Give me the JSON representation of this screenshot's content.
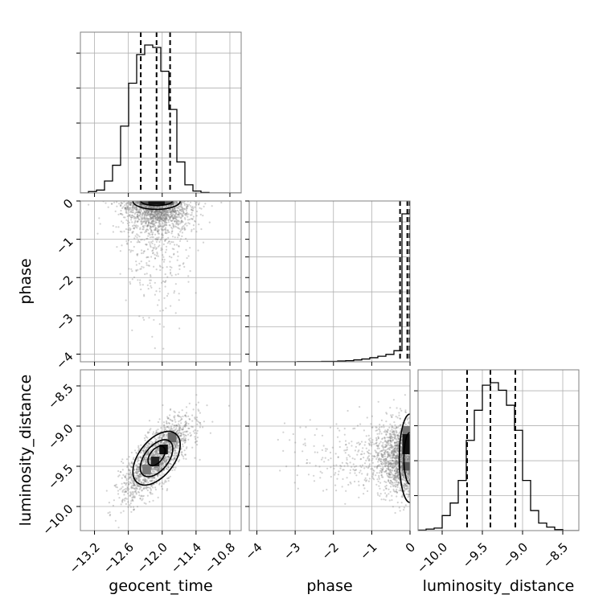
{
  "colors": {
    "background": "#ffffff",
    "frame": "#808080",
    "grid": "#b0b0b0",
    "line": "#000000",
    "points": "#7f7f7f"
  },
  "chart_data": {
    "type": "corner",
    "title": "",
    "parameters": [
      "geocent_time",
      "phase",
      "luminosity_distance"
    ],
    "ranges": {
      "geocent_time": [
        -13.45,
        -10.6
      ],
      "phase": [
        -4.2,
        0.0
      ],
      "luminosity_distance": [
        -10.3,
        -8.3
      ]
    },
    "ticks": {
      "geocent_time": [
        "-13.2",
        "-12.6",
        "-12.0",
        "-11.4",
        "-10.8"
      ],
      "phase": [
        "-4",
        "-3",
        "-2",
        "-1",
        "0"
      ],
      "luminosity_distance": [
        "-10.0",
        "-9.5",
        "-9.0",
        "-8.5"
      ]
    },
    "tick_labels_display": {
      "geocent_time": [
        "−13.2",
        "−12.6",
        "−12.0",
        "−11.4",
        "−10.8"
      ],
      "phase": [
        "−4",
        "−3",
        "−2",
        "−1",
        "0"
      ],
      "luminosity_distance": [
        "−10.0",
        "−9.5",
        "−9.0",
        "−8.5"
      ]
    },
    "grid": true,
    "histograms": [
      {
        "parameter": "geocent_time",
        "bin_edges": [
          -13.45,
          -13.3075,
          -13.165,
          -13.0225,
          -12.88,
          -12.7375,
          -12.595,
          -12.4525,
          -12.31,
          -12.1675,
          -12.025,
          -11.8825,
          -11.74,
          -11.5975,
          -11.455,
          -11.3125,
          -11.17,
          -11.0275,
          -10.885,
          -10.7425,
          -10.6
        ],
        "counts": [
          0,
          3,
          6,
          25,
          58,
          140,
          230,
          290,
          310,
          305,
          255,
          175,
          65,
          17,
          4,
          1,
          0,
          0,
          0,
          0
        ],
        "quantiles": [
          -12.38,
          -12.1,
          -11.86
        ]
      },
      {
        "parameter": "phase",
        "bin_edges": [
          -4.2,
          -3.99,
          -3.78,
          -3.57,
          -3.36,
          -3.15,
          -2.94,
          -2.73,
          -2.52,
          -2.31,
          -2.1,
          -1.89,
          -1.68,
          -1.47,
          -1.26,
          -1.05,
          -0.84,
          -0.63,
          -0.42,
          -0.21,
          0.0
        ],
        "counts": [
          0,
          0,
          0,
          0,
          0,
          0,
          1,
          1,
          1,
          2,
          2,
          4,
          6,
          10,
          15,
          22,
          30,
          40,
          60,
          800
        ],
        "quantiles": [
          -0.26,
          -0.07,
          -0.01
        ]
      },
      {
        "parameter": "luminosity_distance",
        "bin_edges": [
          -10.3,
          -10.2,
          -10.1,
          -10.0,
          -9.9,
          -9.8,
          -9.7,
          -9.6,
          -9.5,
          -9.4,
          -9.3,
          -9.2,
          -9.1,
          -9.0,
          -8.9,
          -8.8,
          -8.7,
          -8.6,
          -8.5,
          -8.4,
          -8.3
        ],
        "counts": [
          1,
          3,
          5,
          30,
          55,
          100,
          180,
          240,
          290,
          295,
          280,
          250,
          200,
          100,
          40,
          15,
          7,
          2,
          0,
          0
        ],
        "quantiles": [
          -9.69,
          -9.4,
          -9.09
        ]
      }
    ],
    "scatter_summaries": [
      {
        "x": "geocent_time",
        "y": "phase",
        "center": [
          -12.1,
          -0.1
        ],
        "spread": [
          0.3,
          0.5
        ],
        "note": "phase piled against 0, tail down to about -4"
      },
      {
        "x": "geocent_time",
        "y": "luminosity_distance",
        "center": [
          -12.1,
          -9.4
        ],
        "spread": [
          0.3,
          0.25
        ],
        "correlation": 0.75
      },
      {
        "x": "phase",
        "y": "luminosity_distance",
        "center": [
          -0.1,
          -9.4
        ],
        "spread": [
          0.5,
          0.25
        ]
      }
    ]
  }
}
